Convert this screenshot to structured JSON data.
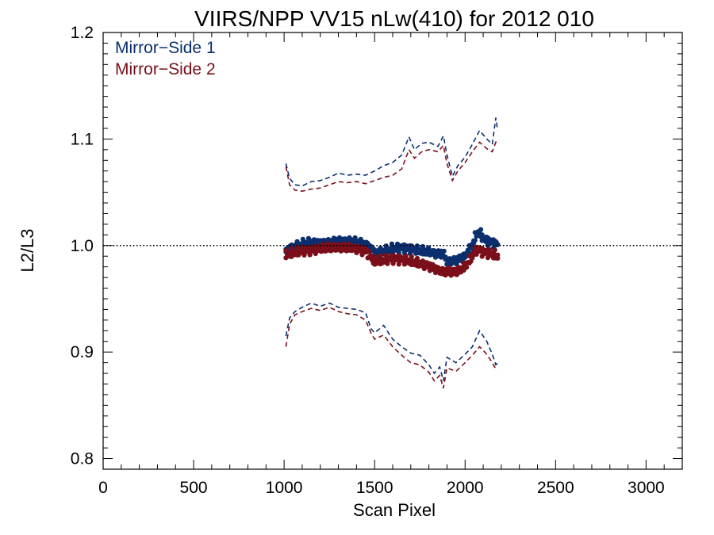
{
  "chart_data": {
    "type": "scatter",
    "title": "VIIRS/NPP VV15 nLw(410) for 2012 010",
    "xlabel": "Scan Pixel",
    "ylabel": "L2/L3",
    "xlim": [
      0,
      3200
    ],
    "ylim": [
      0.79,
      1.2
    ],
    "x_ticks": [
      0,
      500,
      1000,
      1500,
      2000,
      2500,
      3000
    ],
    "x_tick_labels": [
      "0",
      "500",
      "1000",
      "1500",
      "2000",
      "2500",
      "3000"
    ],
    "y_ticks": [
      0.8,
      0.9,
      1.0,
      1.1,
      1.2
    ],
    "y_tick_labels": [
      "0.8",
      "0.9",
      "1.0",
      "1.1",
      "1.2"
    ],
    "reference_line": 1.0,
    "legend_position": "top-left",
    "series": [
      {
        "name": "Mirror−Side 1",
        "color": "#0b2f6e",
        "mean": {
          "x": [
            1010,
            1050,
            1100,
            1150,
            1200,
            1250,
            1300,
            1350,
            1400,
            1450,
            1480,
            1500,
            1550,
            1600,
            1650,
            1700,
            1750,
            1800,
            1850,
            1880,
            1900,
            1950,
            2000,
            2040,
            2060,
            2080,
            2100,
            2150,
            2180
          ],
          "y": [
            0.995,
            0.998,
            1.001,
            1.003,
            1.002,
            1.003,
            1.004,
            1.004,
            1.003,
            1.001,
            0.997,
            0.993,
            0.994,
            0.997,
            0.998,
            0.997,
            0.995,
            0.994,
            0.992,
            0.993,
            0.985,
            0.986,
            0.99,
            1.0,
            1.01,
            1.013,
            1.006,
            1.003,
            1.001
          ]
        },
        "upper": {
          "x": [
            1010,
            1030,
            1060,
            1100,
            1150,
            1200,
            1250,
            1300,
            1350,
            1400,
            1450,
            1500,
            1550,
            1600,
            1650,
            1690,
            1720,
            1760,
            1800,
            1850,
            1880,
            1900,
            1930,
            1960,
            2000,
            2040,
            2080,
            2120,
            2150,
            2170,
            2180
          ],
          "y": [
            1.077,
            1.063,
            1.057,
            1.056,
            1.06,
            1.061,
            1.064,
            1.068,
            1.066,
            1.067,
            1.066,
            1.07,
            1.075,
            1.078,
            1.085,
            1.102,
            1.09,
            1.096,
            1.097,
            1.093,
            1.103,
            1.085,
            1.065,
            1.075,
            1.083,
            1.095,
            1.108,
            1.1,
            1.095,
            1.12,
            1.108
          ]
        },
        "lower": {
          "x": [
            1010,
            1030,
            1060,
            1100,
            1150,
            1200,
            1250,
            1300,
            1350,
            1400,
            1450,
            1480,
            1500,
            1550,
            1600,
            1650,
            1700,
            1750,
            1800,
            1830,
            1860,
            1880,
            1900,
            1950,
            2000,
            2040,
            2080,
            2120,
            2150,
            2170,
            2180
          ],
          "y": [
            0.915,
            0.932,
            0.938,
            0.942,
            0.946,
            0.943,
            0.946,
            0.942,
            0.941,
            0.94,
            0.937,
            0.922,
            0.918,
            0.925,
            0.912,
            0.905,
            0.899,
            0.897,
            0.888,
            0.88,
            0.886,
            0.873,
            0.895,
            0.89,
            0.898,
            0.905,
            0.92,
            0.91,
            0.898,
            0.888,
            0.89
          ]
        }
      },
      {
        "name": "Mirror−Side 2",
        "color": "#7a0f1a",
        "mean": {
          "x": [
            1010,
            1050,
            1100,
            1150,
            1200,
            1250,
            1300,
            1350,
            1400,
            1450,
            1480,
            1500,
            1550,
            1600,
            1650,
            1700,
            1750,
            1800,
            1850,
            1880,
            1900,
            1950,
            2000,
            2040,
            2060,
            2080,
            2100,
            2150,
            2180
          ],
          "y": [
            0.991,
            0.993,
            0.995,
            0.996,
            0.997,
            0.998,
            0.998,
            0.998,
            0.997,
            0.995,
            0.989,
            0.985,
            0.986,
            0.988,
            0.987,
            0.985,
            0.983,
            0.981,
            0.977,
            0.975,
            0.976,
            0.975,
            0.98,
            0.99,
            0.996,
            0.996,
            0.994,
            0.992,
            0.99
          ]
        },
        "upper": {
          "x": [
            1010,
            1030,
            1060,
            1100,
            1150,
            1200,
            1250,
            1300,
            1350,
            1400,
            1450,
            1500,
            1550,
            1600,
            1650,
            1690,
            1720,
            1760,
            1800,
            1850,
            1880,
            1900,
            1930,
            1960,
            2000,
            2040,
            2080,
            2120,
            2150,
            2170,
            2180
          ],
          "y": [
            1.074,
            1.057,
            1.052,
            1.051,
            1.053,
            1.054,
            1.057,
            1.06,
            1.059,
            1.06,
            1.058,
            1.061,
            1.064,
            1.066,
            1.072,
            1.09,
            1.082,
            1.088,
            1.09,
            1.088,
            1.094,
            1.077,
            1.061,
            1.07,
            1.078,
            1.088,
            1.097,
            1.091,
            1.088,
            1.097,
            1.094
          ]
        },
        "lower": {
          "x": [
            1010,
            1030,
            1060,
            1100,
            1150,
            1200,
            1250,
            1300,
            1350,
            1400,
            1450,
            1480,
            1500,
            1550,
            1600,
            1650,
            1700,
            1750,
            1800,
            1830,
            1860,
            1880,
            1900,
            1950,
            2000,
            2040,
            2080,
            2120,
            2150,
            2170,
            2180
          ],
          "y": [
            0.905,
            0.926,
            0.935,
            0.938,
            0.941,
            0.939,
            0.942,
            0.938,
            0.936,
            0.935,
            0.93,
            0.918,
            0.912,
            0.916,
            0.905,
            0.897,
            0.89,
            0.888,
            0.881,
            0.873,
            0.878,
            0.866,
            0.885,
            0.882,
            0.89,
            0.897,
            0.905,
            0.898,
            0.89,
            0.884,
            0.884
          ]
        }
      }
    ]
  }
}
